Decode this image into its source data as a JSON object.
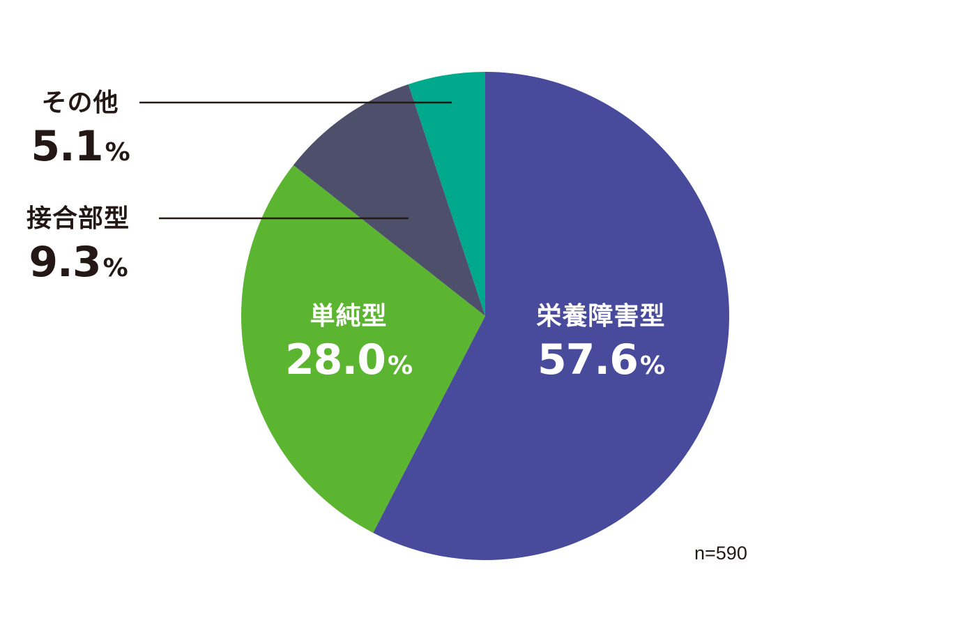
{
  "chart_data": {
    "type": "pie",
    "start_angle": "top",
    "direction": "clockwise",
    "slices": [
      {
        "label": "栄養障害型",
        "value": 57.6,
        "display": "57.6",
        "unit": "%",
        "color": "#484b9c",
        "label_color": "#ffffff"
      },
      {
        "label": "単純型",
        "value": 28.0,
        "display": "28.0",
        "unit": "%",
        "color": "#5cb531",
        "label_color": "#ffffff"
      },
      {
        "label": "接合部型",
        "value": 9.3,
        "display": "9.3",
        "unit": "%",
        "color": "#4e4f6b",
        "label_color": "#231815"
      },
      {
        "label": "その他",
        "value": 5.1,
        "display": "5.1",
        "unit": "%",
        "color": "#00a98c",
        "label_color": "#231815"
      }
    ],
    "note": "n=590"
  }
}
